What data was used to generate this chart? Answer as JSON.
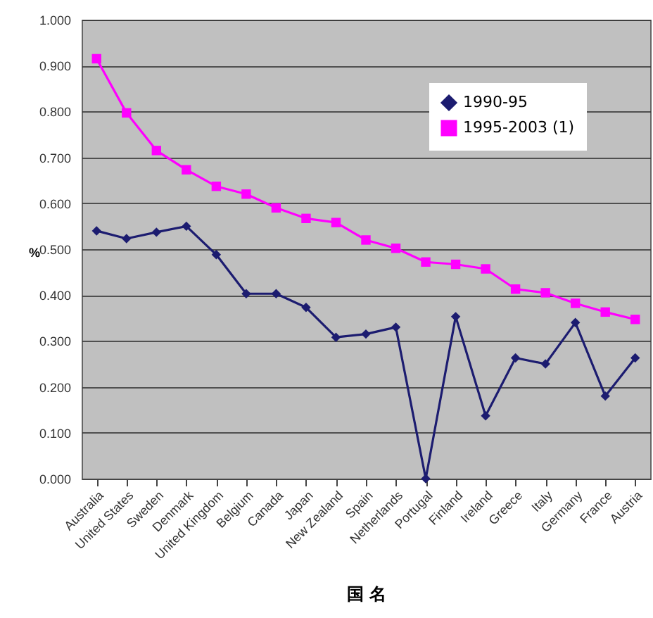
{
  "chart_data": {
    "type": "line",
    "xlabel": "国 名",
    "ylabel": "%",
    "categories": [
      "Australia",
      "United States",
      "Sweden",
      "Denmark",
      "United Kingdom",
      "Belgium",
      "Canada",
      "Japan",
      "New Zealand",
      "Spain",
      "Netherlands",
      "Portugal",
      "Finland",
      "Ireland",
      "Greece",
      "Italy",
      "Germany",
      "France",
      "Austria"
    ],
    "series": [
      {
        "name": "1990-95",
        "color": "#1c1c70",
        "marker": "diamond",
        "values": [
          0.54,
          0.523,
          0.537,
          0.55,
          0.488,
          0.403,
          0.403,
          0.373,
          0.308,
          0.315,
          0.33,
          0.0,
          0.353,
          0.137,
          0.263,
          0.25,
          0.34,
          0.18,
          0.263
        ]
      },
      {
        "name": "1995-2003 (1)",
        "color": "#ff00ff",
        "marker": "square",
        "values": [
          0.915,
          0.797,
          0.715,
          0.673,
          0.637,
          0.62,
          0.59,
          0.567,
          0.558,
          0.52,
          0.502,
          0.472,
          0.467,
          0.457,
          0.413,
          0.405,
          0.382,
          0.363,
          0.347
        ]
      }
    ],
    "ylim": [
      0,
      1
    ],
    "yticks": [
      {
        "value": 0,
        "label": "0.000"
      },
      {
        "value": 0.1,
        "label": "0.100"
      },
      {
        "value": 0.2,
        "label": "0.200"
      },
      {
        "value": 0.3,
        "label": "0.300"
      },
      {
        "value": 0.4,
        "label": "0.400"
      },
      {
        "value": 0.5,
        "label": "0.500"
      },
      {
        "value": 0.6,
        "label": "0.600"
      },
      {
        "value": 0.7,
        "label": "0.700"
      },
      {
        "value": 0.8,
        "label": "0.800"
      },
      {
        "value": 0.9,
        "label": "0.900"
      },
      {
        "value": 1,
        "label": "1.000"
      }
    ],
    "grid": "y",
    "legend": "top right"
  }
}
